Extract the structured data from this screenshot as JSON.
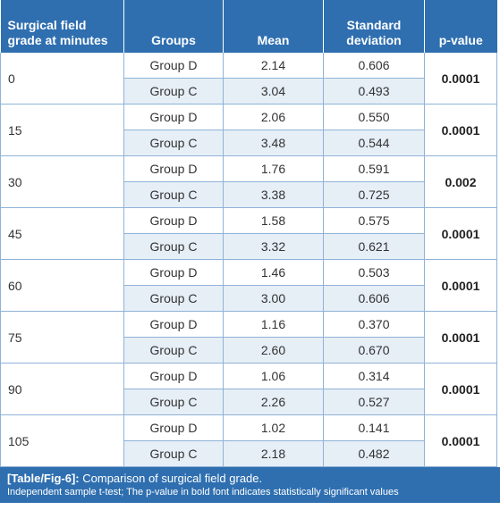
{
  "headers": {
    "grade": [
      "Surgical field",
      "grade at minutes"
    ],
    "groups": "Groups",
    "mean": "Mean",
    "sd": [
      "Standard",
      "deviation"
    ],
    "pvalue": "p-value"
  },
  "rows": [
    {
      "grade": "0",
      "p": "0.0001",
      "d": {
        "group": "Group D",
        "mean": "2.14",
        "sd": "0.606"
      },
      "c": {
        "group": "Group C",
        "mean": "3.04",
        "sd": "0.493"
      }
    },
    {
      "grade": "15",
      "p": "0.0001",
      "d": {
        "group": "Group D",
        "mean": "2.06",
        "sd": "0.550"
      },
      "c": {
        "group": "Group C",
        "mean": "3.48",
        "sd": "0.544"
      }
    },
    {
      "grade": "30",
      "p": "0.002",
      "d": {
        "group": "Group D",
        "mean": "1.76",
        "sd": "0.591"
      },
      "c": {
        "group": "Group C",
        "mean": "3.38",
        "sd": "0.725"
      }
    },
    {
      "grade": "45",
      "p": "0.0001",
      "d": {
        "group": "Group D",
        "mean": "1.58",
        "sd": "0.575"
      },
      "c": {
        "group": "Group C",
        "mean": "3.32",
        "sd": "0.621"
      }
    },
    {
      "grade": "60",
      "p": "0.0001",
      "d": {
        "group": "Group D",
        "mean": "1.46",
        "sd": "0.503"
      },
      "c": {
        "group": "Group C",
        "mean": "3.00",
        "sd": "0.606"
      }
    },
    {
      "grade": "75",
      "p": "0.0001",
      "d": {
        "group": "Group D",
        "mean": "1.16",
        "sd": "0.370"
      },
      "c": {
        "group": "Group C",
        "mean": "2.60",
        "sd": "0.670"
      }
    },
    {
      "grade": "90",
      "p": "0.0001",
      "d": {
        "group": "Group D",
        "mean": "1.06",
        "sd": "0.314"
      },
      "c": {
        "group": "Group C",
        "mean": "2.26",
        "sd": "0.527"
      }
    },
    {
      "grade": "105",
      "p": "0.0001",
      "d": {
        "group": "Group D",
        "mean": "1.02",
        "sd": "0.141"
      },
      "c": {
        "group": "Group C",
        "mean": "2.18",
        "sd": "0.482"
      }
    }
  ],
  "caption": {
    "label": "[Table/Fig-6]:",
    "title": " Comparison of surgical field grade.",
    "note": "Independent sample t-test; The p-value in bold font indicates statistically significant values"
  },
  "colors": {
    "header_bg": "#2f6fb0",
    "header_text": "#ffffff",
    "row_alt_bg": "#e6eef6",
    "grid": "#8fb3d8"
  }
}
